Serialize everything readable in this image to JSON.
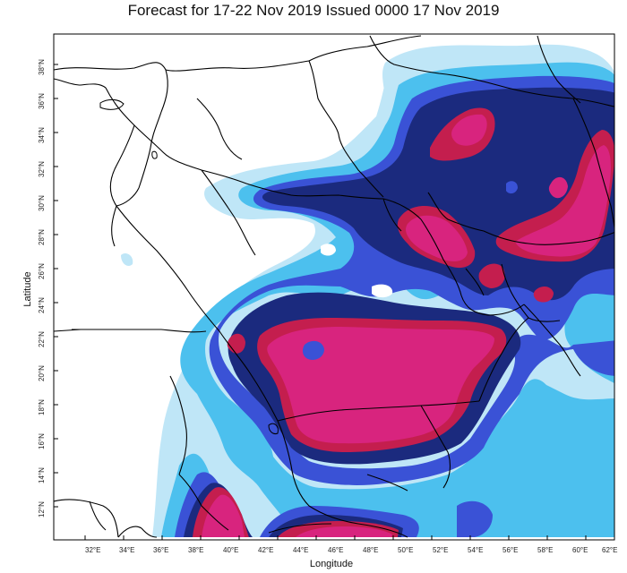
{
  "title": "Forecast for 17-22 Nov 2019 Issued 0000 17 Nov 2019",
  "axes": {
    "x_title": "Longitude",
    "y_title": "Latitude",
    "x_ticks": [
      "32°E",
      "34°E",
      "36°E",
      "38°E",
      "40°E",
      "42°E",
      "44°E",
      "46°E",
      "48°E",
      "50°E",
      "52°E",
      "54°E",
      "56°E",
      "58°E",
      "60°E",
      "62°E"
    ],
    "y_ticks": [
      "12°N",
      "14°N",
      "16°N",
      "18°N",
      "20°N",
      "22°N",
      "24°N",
      "26°N",
      "28°N",
      "30°N",
      "32°N",
      "34°N",
      "36°N",
      "38°N"
    ]
  },
  "colors": {
    "level_1": "#bfe6f7",
    "level_2": "#4cc0ee",
    "level_3": "#3a52d6",
    "level_4": "#1b2a7e",
    "level_5": "#c41e4e",
    "level_6": "#d8247e",
    "boundary": "#000000"
  }
}
